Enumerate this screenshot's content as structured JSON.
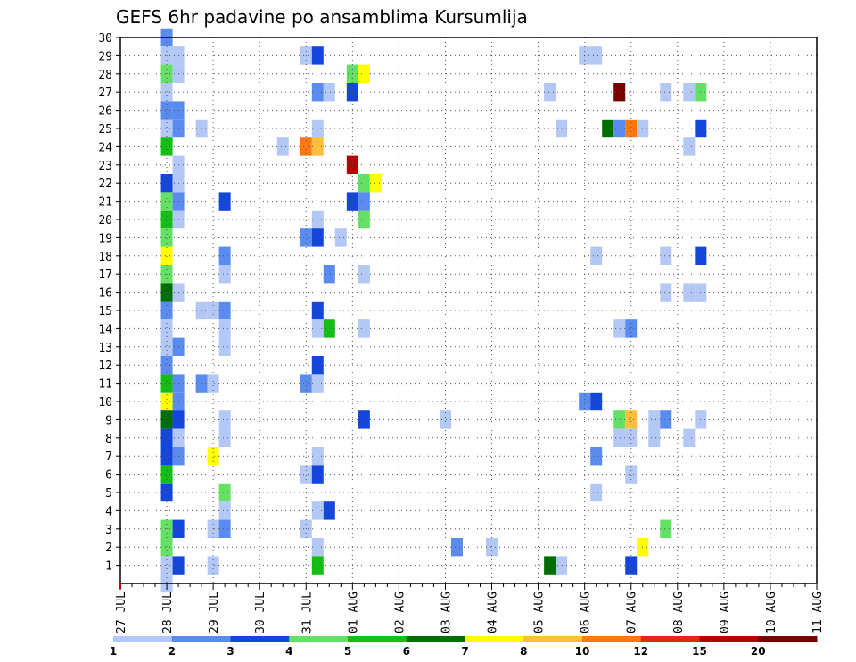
{
  "chart_data": {
    "type": "heatmap",
    "title": "GEFS 6hr padavine po ansamblima Kursumlija",
    "x_tick_labels": [
      "27 JUL",
      "28 JUL",
      "29 JUL",
      "30 JUL",
      "31 JUL",
      "01 AUG",
      "02 AUG",
      "03 AUG",
      "04 AUG",
      "05 AUG",
      "06 AUG",
      "07 AUG",
      "08 AUG",
      "09 AUG",
      "10 AUG",
      "11 AUG"
    ],
    "y_tick_labels": [
      "1",
      "2",
      "3",
      "4",
      "5",
      "6",
      "7",
      "8",
      "9",
      "10",
      "11",
      "12",
      "13",
      "14",
      "15",
      "16",
      "17",
      "18",
      "19",
      "20",
      "21",
      "22",
      "23",
      "24",
      "25",
      "26",
      "27",
      "28",
      "29",
      "30"
    ],
    "x_range": [
      "27 JUL",
      "11 AUG"
    ],
    "y_range": [
      0,
      30
    ],
    "x_unit": "6-hour step from 27 JUL",
    "grid": true,
    "legend_position": "bottom",
    "legend_levels": [
      "1",
      "2",
      "3",
      "4",
      "5",
      "6",
      "7",
      "8",
      "10",
      "12",
      "15",
      "20"
    ],
    "colorbar": [
      "#b4c8f5",
      "#5a8cf0",
      "#1446dc",
      "#64e164",
      "#14be14",
      "#006e00",
      "#ffff00",
      "#ffbe3c",
      "#ff7814",
      "#e12814",
      "#b40000",
      "#780000"
    ],
    "cells": [
      [
        4,
        30,
        1
      ],
      [
        4,
        29,
        0
      ],
      [
        5,
        29,
        0
      ],
      [
        4,
        28,
        3
      ],
      [
        5,
        28,
        0
      ],
      [
        4,
        27,
        0
      ],
      [
        4,
        26,
        1
      ],
      [
        5,
        26,
        1
      ],
      [
        4,
        25,
        0
      ],
      [
        5,
        25,
        1
      ],
      [
        7,
        25,
        0
      ],
      [
        4,
        24,
        4
      ],
      [
        5,
        23,
        0
      ],
      [
        4,
        22,
        2
      ],
      [
        5,
        22,
        0
      ],
      [
        4,
        21,
        3
      ],
      [
        5,
        21,
        1
      ],
      [
        9,
        21,
        2
      ],
      [
        4,
        20,
        4
      ],
      [
        5,
        20,
        0
      ],
      [
        4,
        19,
        3
      ],
      [
        4,
        18,
        6
      ],
      [
        9,
        18,
        1
      ],
      [
        4,
        17,
        3
      ],
      [
        9,
        17,
        0
      ],
      [
        4,
        16,
        5
      ],
      [
        5,
        16,
        0
      ],
      [
        4,
        15,
        1
      ],
      [
        7,
        15,
        0
      ],
      [
        8,
        15,
        0
      ],
      [
        9,
        15,
        1
      ],
      [
        4,
        14,
        0
      ],
      [
        9,
        14,
        0
      ],
      [
        4,
        13,
        0
      ],
      [
        5,
        13,
        1
      ],
      [
        9,
        13,
        0
      ],
      [
        4,
        12,
        1
      ],
      [
        4,
        11,
        4
      ],
      [
        5,
        11,
        1
      ],
      [
        7,
        11,
        1
      ],
      [
        8,
        11,
        0
      ],
      [
        4,
        10,
        6
      ],
      [
        5,
        10,
        1
      ],
      [
        4,
        9,
        5
      ],
      [
        5,
        9,
        2
      ],
      [
        9,
        9,
        0
      ],
      [
        4,
        8,
        2
      ],
      [
        5,
        8,
        0
      ],
      [
        9,
        8,
        0
      ],
      [
        4,
        7,
        2
      ],
      [
        5,
        7,
        1
      ],
      [
        8,
        7,
        6
      ],
      [
        4,
        6,
        4
      ],
      [
        4,
        5,
        2
      ],
      [
        9,
        5,
        3
      ],
      [
        9,
        4,
        0
      ],
      [
        4,
        3,
        3
      ],
      [
        5,
        3,
        2
      ],
      [
        8,
        3,
        0
      ],
      [
        9,
        3,
        1
      ],
      [
        4,
        2,
        3
      ],
      [
        4,
        1,
        0
      ],
      [
        5,
        1,
        2
      ],
      [
        8,
        1,
        0
      ],
      [
        4,
        0,
        0
      ],
      [
        16,
        29,
        0
      ],
      [
        17,
        29,
        2
      ],
      [
        20,
        28,
        3
      ],
      [
        21,
        28,
        6
      ],
      [
        17,
        27,
        1
      ],
      [
        18,
        27,
        0
      ],
      [
        20,
        27,
        2
      ],
      [
        17,
        25,
        0
      ],
      [
        14,
        24,
        0
      ],
      [
        16,
        24,
        8
      ],
      [
        17,
        24,
        7
      ],
      [
        20,
        23,
        10
      ],
      [
        21,
        22,
        3
      ],
      [
        22,
        22,
        6
      ],
      [
        20,
        21,
        2
      ],
      [
        21,
        21,
        1
      ],
      [
        17,
        20,
        0
      ],
      [
        21,
        20,
        3
      ],
      [
        16,
        19,
        1
      ],
      [
        17,
        19,
        2
      ],
      [
        19,
        19,
        0
      ],
      [
        18,
        17,
        1
      ],
      [
        21,
        17,
        0
      ],
      [
        17,
        15,
        2
      ],
      [
        17,
        14,
        0
      ],
      [
        18,
        14,
        4
      ],
      [
        21,
        14,
        0
      ],
      [
        17,
        12,
        2
      ],
      [
        16,
        11,
        1
      ],
      [
        17,
        11,
        0
      ],
      [
        21,
        9,
        2
      ],
      [
        17,
        7,
        0
      ],
      [
        16,
        6,
        0
      ],
      [
        17,
        6,
        2
      ],
      [
        17,
        4,
        0
      ],
      [
        18,
        4,
        2
      ],
      [
        16,
        3,
        0
      ],
      [
        17,
        2,
        0
      ],
      [
        17,
        1,
        4
      ],
      [
        28,
        9,
        0
      ],
      [
        29,
        2,
        1
      ],
      [
        32,
        2,
        0
      ],
      [
        37,
        1,
        5
      ],
      [
        38,
        1,
        0
      ],
      [
        37,
        27,
        0
      ],
      [
        38,
        25,
        0
      ],
      [
        40,
        29,
        0
      ],
      [
        41,
        29,
        0
      ],
      [
        40,
        10,
        1
      ],
      [
        41,
        10,
        2
      ],
      [
        41,
        18,
        0
      ],
      [
        41,
        7,
        1
      ],
      [
        41,
        5,
        0
      ],
      [
        43,
        27,
        11
      ],
      [
        42,
        25,
        5
      ],
      [
        43,
        25,
        1
      ],
      [
        44,
        25,
        8
      ],
      [
        45,
        25,
        0
      ],
      [
        43,
        9,
        3
      ],
      [
        44,
        9,
        7
      ],
      [
        43,
        8,
        0
      ],
      [
        44,
        8,
        0
      ],
      [
        43,
        14,
        0
      ],
      [
        44,
        14,
        1
      ],
      [
        44,
        6,
        0
      ],
      [
        44,
        1,
        2
      ],
      [
        45,
        2,
        6
      ],
      [
        46,
        9,
        0
      ],
      [
        47,
        9,
        1
      ],
      [
        46,
        8,
        0
      ],
      [
        47,
        27,
        0
      ],
      [
        47,
        18,
        0
      ],
      [
        47,
        16,
        0
      ],
      [
        47,
        3,
        3
      ],
      [
        49,
        27,
        0
      ],
      [
        50,
        27,
        3
      ],
      [
        49,
        24,
        0
      ],
      [
        50,
        25,
        2
      ],
      [
        49,
        16,
        0
      ],
      [
        50,
        16,
        0
      ],
      [
        50,
        18,
        2
      ],
      [
        49,
        8,
        0
      ],
      [
        50,
        9,
        0
      ]
    ]
  }
}
